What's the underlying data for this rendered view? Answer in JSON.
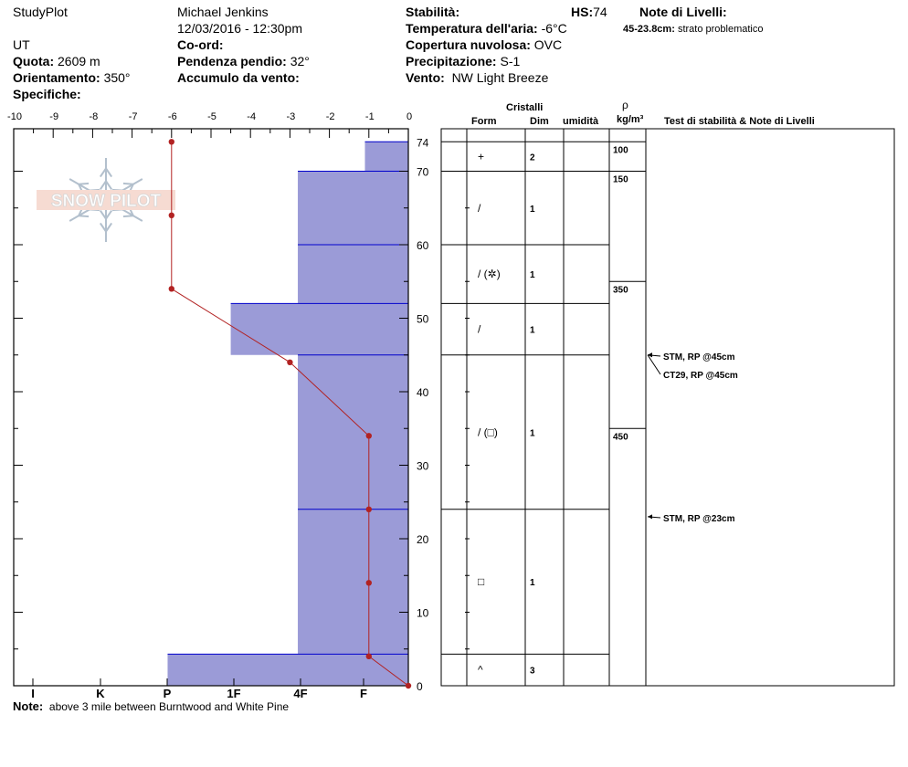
{
  "header": {
    "app": "StudyPlot",
    "observer": "Michael Jenkins",
    "datetime": "12/03/2016 - 12:30pm",
    "state": "UT",
    "quota_label": "Quota:",
    "quota_value": "2609 m",
    "orient_label": "Orientamento:",
    "orient_value": "350°",
    "spec_label": "Specifiche:",
    "coord_label": "Co-ord:",
    "slope_label": "Pendenza pendio:",
    "slope_value": "32°",
    "wind_load_label": "Accumulo da vento:",
    "stab_label": "Stabilità:",
    "hs_label": "HS:",
    "hs_value": "74",
    "air_temp_label": "Temperatura dell'aria:",
    "air_temp_value": "-6°C",
    "cloud_label": "Copertura nuvolosa:",
    "cloud_value": "OVC",
    "precip_label": "Precipitazione:",
    "precip_value": "S-1",
    "wind_label": "Vento:",
    "wind_value": "NW Light Breeze",
    "layer_notes_label": "Note di Livelli:",
    "layer_note_range": "45-23.8cm:",
    "layer_note_text": "strato problematico"
  },
  "logo_text": "SNOW PILOT",
  "note": {
    "label": "Note:",
    "text": "above 3 mile between Burntwood and White Pine"
  },
  "table_headers": {
    "cristalli": "Cristalli",
    "form": "Form",
    "dim": "Dim",
    "umidita": "umidità",
    "rho": "ρ",
    "density_unit": "kg/m³",
    "tests": "Test di stabilità & Note di Livelli"
  },
  "chart_data": {
    "type": "snow_profile",
    "temperature_axis": {
      "ticks": [
        -10,
        -9,
        -8,
        -7,
        -6,
        -5,
        -4,
        -3,
        -2,
        -1,
        0
      ],
      "range": [
        -10,
        0
      ]
    },
    "height_axis": {
      "ticks": [
        0,
        10,
        20,
        30,
        40,
        50,
        60,
        70
      ],
      "top_label": "74",
      "range": [
        0,
        74
      ]
    },
    "hardness_axis": {
      "labels": [
        "I",
        "K",
        "P",
        "1F",
        "4F",
        "F"
      ]
    },
    "colors": {
      "hardness_fill": "#9b9bd7",
      "hardness_line": "#0000cc",
      "temp_line": "#b22222"
    },
    "hardness_layers": [
      {
        "bottom": 70,
        "top": 74,
        "temp_equiv": -1.1
      },
      {
        "bottom": 60,
        "top": 70,
        "temp_equiv": -2.8
      },
      {
        "bottom": 52,
        "top": 60,
        "temp_equiv": -2.8
      },
      {
        "bottom": 45,
        "top": 52,
        "temp_equiv": -4.5
      },
      {
        "bottom": 24,
        "top": 45,
        "temp_equiv": -2.8
      },
      {
        "bottom": 4.3,
        "top": 24,
        "temp_equiv": -2.8
      },
      {
        "bottom": 0,
        "top": 4.3,
        "temp_equiv": -6.1
      }
    ],
    "temperature_profile": [
      {
        "h": 74,
        "t": -6
      },
      {
        "h": 64,
        "t": -6
      },
      {
        "h": 54,
        "t": -6
      },
      {
        "h": 44,
        "t": -3
      },
      {
        "h": 34,
        "t": -1
      },
      {
        "h": 24,
        "t": -1
      },
      {
        "h": 14,
        "t": -1
      },
      {
        "h": 4,
        "t": -1
      },
      {
        "h": 0,
        "t": 0
      }
    ],
    "layer_rows": [
      {
        "top": 74,
        "bottom": 70,
        "form": "+",
        "dim": "2"
      },
      {
        "top": 70,
        "bottom": 60,
        "form": "/",
        "dim": "1"
      },
      {
        "top": 60,
        "bottom": 52,
        "form": "/ (✲)",
        "dim": "1"
      },
      {
        "top": 52,
        "bottom": 45,
        "form": "/",
        "dim": "1"
      },
      {
        "top": 45,
        "bottom": 24,
        "form": "/ (□)",
        "dim": "1"
      },
      {
        "top": 24,
        "bottom": 4.3,
        "form": "□",
        "dim": "1"
      },
      {
        "top": 4.3,
        "bottom": 0,
        "form": "^",
        "dim": "3"
      }
    ],
    "density": [
      {
        "top": 74,
        "bottom": 70,
        "value": "100"
      },
      {
        "top": 70,
        "bottom": 55,
        "value": "150"
      },
      {
        "top": 55,
        "bottom": 35,
        "value": "350"
      },
      {
        "top": 35,
        "bottom": 0,
        "value": "450"
      }
    ],
    "tests": [
      {
        "h": 45,
        "text": "STM, RP @45cm"
      },
      {
        "h": 45,
        "text": "CT29, RP @45cm"
      },
      {
        "h": 23,
        "text": "STM, RP @23cm"
      }
    ]
  }
}
